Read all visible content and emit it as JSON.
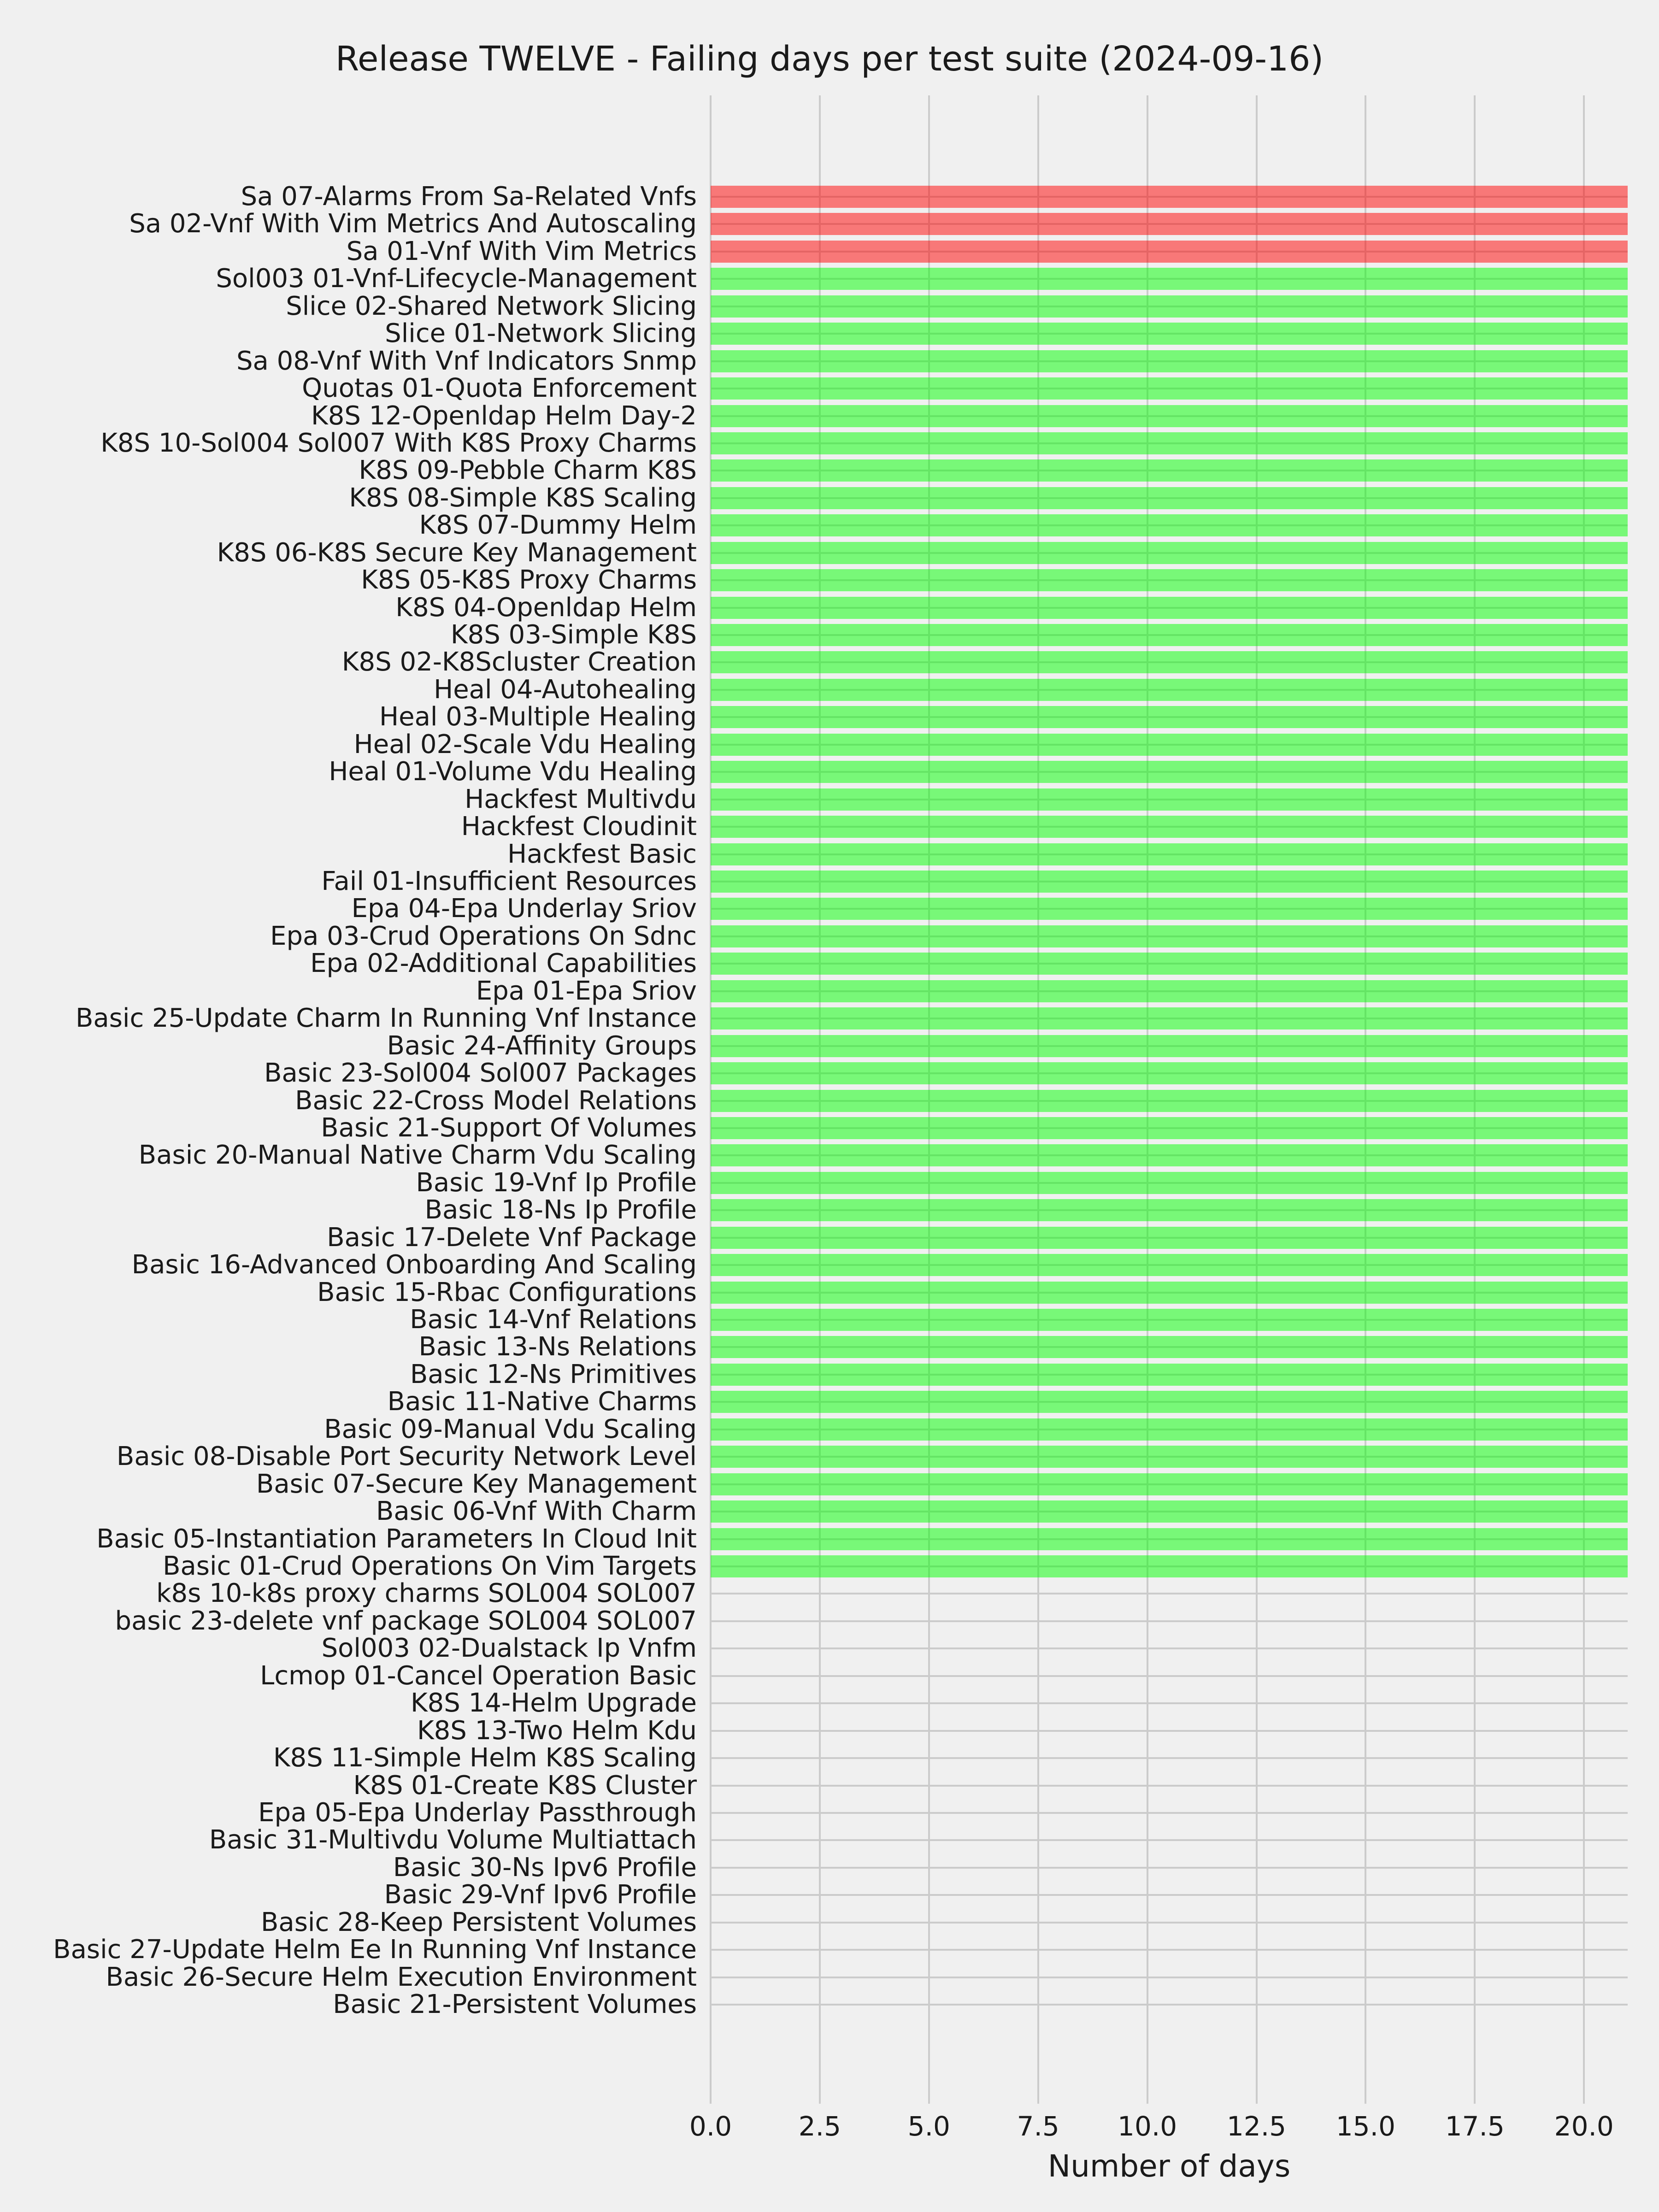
{
  "title": "Release TWELVE - Failing days per test suite (2024-09-16)",
  "colors": {
    "background": "#f0f0f0",
    "grid": "#cbcbcb",
    "text": "#1a1a1a",
    "failing_bar": "rgba(255,0,0,0.5)",
    "passing_bar": "rgba(0,255,0,0.5)"
  },
  "chart_data": {
    "type": "bar",
    "orientation": "horizontal",
    "title": "Release TWELVE - Failing days per test suite (2024-09-16)",
    "xlabel": "Number of days",
    "ylabel": "",
    "xlim": [
      0,
      21
    ],
    "xticks": [
      0.0,
      2.5,
      5.0,
      7.5,
      10.0,
      12.5,
      15.0,
      17.5,
      20.0
    ],
    "xtick_labels": [
      "0.0",
      "2.5",
      "5.0",
      "7.5",
      "10.0",
      "12.5",
      "15.0",
      "17.5",
      "20.0"
    ],
    "grid": true,
    "legend": false,
    "series": [
      {
        "label": "Sa 07-Alarms From Sa-Related Vnfs",
        "value": 21,
        "status": "failing"
      },
      {
        "label": "Sa 02-Vnf With Vim Metrics And Autoscaling",
        "value": 21,
        "status": "failing"
      },
      {
        "label": "Sa 01-Vnf With Vim Metrics",
        "value": 21,
        "status": "failing"
      },
      {
        "label": "Sol003 01-Vnf-Lifecycle-Management",
        "value": 21,
        "status": "passing"
      },
      {
        "label": "Slice 02-Shared Network Slicing",
        "value": 21,
        "status": "passing"
      },
      {
        "label": "Slice 01-Network Slicing",
        "value": 21,
        "status": "passing"
      },
      {
        "label": "Sa 08-Vnf With Vnf Indicators Snmp",
        "value": 21,
        "status": "passing"
      },
      {
        "label": "Quotas 01-Quota Enforcement",
        "value": 21,
        "status": "passing"
      },
      {
        "label": "K8S 12-Openldap Helm Day-2",
        "value": 21,
        "status": "passing"
      },
      {
        "label": "K8S 10-Sol004 Sol007 With K8S Proxy Charms",
        "value": 21,
        "status": "passing"
      },
      {
        "label": "K8S 09-Pebble Charm K8S",
        "value": 21,
        "status": "passing"
      },
      {
        "label": "K8S 08-Simple K8S Scaling",
        "value": 21,
        "status": "passing"
      },
      {
        "label": "K8S 07-Dummy Helm",
        "value": 21,
        "status": "passing"
      },
      {
        "label": "K8S 06-K8S Secure Key Management",
        "value": 21,
        "status": "passing"
      },
      {
        "label": "K8S 05-K8S Proxy Charms",
        "value": 21,
        "status": "passing"
      },
      {
        "label": "K8S 04-Openldap Helm",
        "value": 21,
        "status": "passing"
      },
      {
        "label": "K8S 03-Simple K8S",
        "value": 21,
        "status": "passing"
      },
      {
        "label": "K8S 02-K8Scluster Creation",
        "value": 21,
        "status": "passing"
      },
      {
        "label": "Heal 04-Autohealing",
        "value": 21,
        "status": "passing"
      },
      {
        "label": "Heal 03-Multiple Healing",
        "value": 21,
        "status": "passing"
      },
      {
        "label": "Heal 02-Scale Vdu Healing",
        "value": 21,
        "status": "passing"
      },
      {
        "label": "Heal 01-Volume Vdu Healing",
        "value": 21,
        "status": "passing"
      },
      {
        "label": "Hackfest Multivdu",
        "value": 21,
        "status": "passing"
      },
      {
        "label": "Hackfest Cloudinit",
        "value": 21,
        "status": "passing"
      },
      {
        "label": "Hackfest Basic",
        "value": 21,
        "status": "passing"
      },
      {
        "label": "Fail 01-Insufficient Resources",
        "value": 21,
        "status": "passing"
      },
      {
        "label": "Epa 04-Epa Underlay Sriov",
        "value": 21,
        "status": "passing"
      },
      {
        "label": "Epa 03-Crud Operations On Sdnc",
        "value": 21,
        "status": "passing"
      },
      {
        "label": "Epa 02-Additional Capabilities",
        "value": 21,
        "status": "passing"
      },
      {
        "label": "Epa 01-Epa Sriov",
        "value": 21,
        "status": "passing"
      },
      {
        "label": "Basic 25-Update Charm In Running Vnf Instance",
        "value": 21,
        "status": "passing"
      },
      {
        "label": "Basic 24-Affinity Groups",
        "value": 21,
        "status": "passing"
      },
      {
        "label": "Basic 23-Sol004 Sol007 Packages",
        "value": 21,
        "status": "passing"
      },
      {
        "label": "Basic 22-Cross Model Relations",
        "value": 21,
        "status": "passing"
      },
      {
        "label": "Basic 21-Support Of Volumes",
        "value": 21,
        "status": "passing"
      },
      {
        "label": "Basic 20-Manual Native Charm Vdu Scaling",
        "value": 21,
        "status": "passing"
      },
      {
        "label": "Basic 19-Vnf Ip Profile",
        "value": 21,
        "status": "passing"
      },
      {
        "label": "Basic 18-Ns Ip Profile",
        "value": 21,
        "status": "passing"
      },
      {
        "label": "Basic 17-Delete Vnf Package",
        "value": 21,
        "status": "passing"
      },
      {
        "label": "Basic 16-Advanced Onboarding And Scaling",
        "value": 21,
        "status": "passing"
      },
      {
        "label": "Basic 15-Rbac Configurations",
        "value": 21,
        "status": "passing"
      },
      {
        "label": "Basic 14-Vnf Relations",
        "value": 21,
        "status": "passing"
      },
      {
        "label": "Basic 13-Ns Relations",
        "value": 21,
        "status": "passing"
      },
      {
        "label": "Basic 12-Ns Primitives",
        "value": 21,
        "status": "passing"
      },
      {
        "label": "Basic 11-Native Charms",
        "value": 21,
        "status": "passing"
      },
      {
        "label": "Basic 09-Manual Vdu Scaling",
        "value": 21,
        "status": "passing"
      },
      {
        "label": "Basic 08-Disable Port Security Network Level",
        "value": 21,
        "status": "passing"
      },
      {
        "label": "Basic 07-Secure Key Management",
        "value": 21,
        "status": "passing"
      },
      {
        "label": "Basic 06-Vnf With Charm",
        "value": 21,
        "status": "passing"
      },
      {
        "label": "Basic 05-Instantiation Parameters In Cloud Init",
        "value": 21,
        "status": "passing"
      },
      {
        "label": "Basic 01-Crud Operations On Vim Targets",
        "value": 21,
        "status": "passing"
      },
      {
        "label": "k8s 10-k8s proxy charms SOL004 SOL007",
        "value": 0,
        "status": "none"
      },
      {
        "label": "basic 23-delete vnf package SOL004 SOL007",
        "value": 0,
        "status": "none"
      },
      {
        "label": "Sol003 02-Dualstack Ip Vnfm",
        "value": 0,
        "status": "none"
      },
      {
        "label": "Lcmop 01-Cancel Operation Basic",
        "value": 0,
        "status": "none"
      },
      {
        "label": "K8S 14-Helm Upgrade",
        "value": 0,
        "status": "none"
      },
      {
        "label": "K8S 13-Two Helm Kdu",
        "value": 0,
        "status": "none"
      },
      {
        "label": "K8S 11-Simple Helm K8S Scaling",
        "value": 0,
        "status": "none"
      },
      {
        "label": "K8S 01-Create K8S Cluster",
        "value": 0,
        "status": "none"
      },
      {
        "label": "Epa 05-Epa Underlay Passthrough",
        "value": 0,
        "status": "none"
      },
      {
        "label": "Basic 31-Multivdu Volume Multiattach",
        "value": 0,
        "status": "none"
      },
      {
        "label": "Basic 30-Ns Ipv6 Profile",
        "value": 0,
        "status": "none"
      },
      {
        "label": "Basic 29-Vnf Ipv6 Profile",
        "value": 0,
        "status": "none"
      },
      {
        "label": "Basic 28-Keep Persistent Volumes",
        "value": 0,
        "status": "none"
      },
      {
        "label": "Basic 27-Update Helm Ee In Running Vnf Instance",
        "value": 0,
        "status": "none"
      },
      {
        "label": "Basic 26-Secure Helm Execution Environment",
        "value": 0,
        "status": "none"
      },
      {
        "label": "Basic 21-Persistent Volumes",
        "value": 0,
        "status": "none"
      }
    ]
  }
}
